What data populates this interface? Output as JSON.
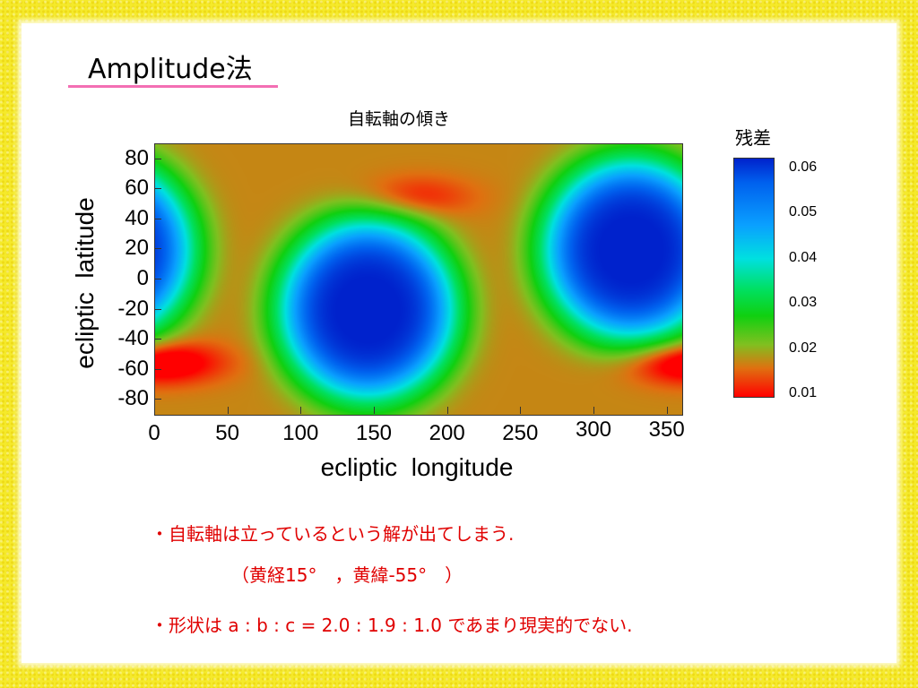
{
  "slide": {
    "title": "Amplitude法",
    "notes": [
      "・自転軸は立っているという解が出てしまう.",
      "（黄経15°　，黄緯-55°　）",
      "・形状は a : b : c = 2.0 : 1.9 : 1.0 であまり現実的でない."
    ]
  },
  "colors": {
    "accent_line": "#f36fb3",
    "note_text": "#e00000",
    "frame": "#f5ea2a"
  },
  "chart_data": {
    "type": "heatmap",
    "title": "自転軸の傾き",
    "xlabel": "ecliptic  longitude",
    "ylabel": "ecliptic  latitude",
    "xlim": [
      0,
      360
    ],
    "ylim": [
      -90,
      90
    ],
    "xticks": [
      "0",
      "50",
      "100",
      "150",
      "200",
      "250",
      "300",
      "350"
    ],
    "yticks": [
      "80",
      "60",
      "40",
      "20",
      "0",
      "-20",
      "-40",
      "-60",
      "-80"
    ],
    "colorbar": {
      "label": "残差",
      "range": [
        0.01,
        0.06
      ],
      "ticks": [
        "0.06",
        "0.05",
        "0.04",
        "0.03",
        "0.02",
        "0.01"
      ],
      "colormap": [
        "#ff0000",
        "#e07010",
        "#80c020",
        "#10d010",
        "#00e060",
        "#00e0e0",
        "#0aa0ff",
        "#0060ee",
        "#0022cc"
      ]
    },
    "minima": [
      {
        "lon": 145,
        "lat": -20,
        "value": 0.052
      },
      {
        "lon": 325,
        "lat": 20,
        "value": 0.052
      }
    ],
    "maxima_regions": [
      {
        "lon": 175,
        "lat": 55,
        "value": 0.01
      },
      {
        "lon": 355,
        "lat": -55,
        "value": 0.01
      },
      {
        "lon": 10,
        "lat": -55,
        "value": 0.01
      }
    ]
  }
}
